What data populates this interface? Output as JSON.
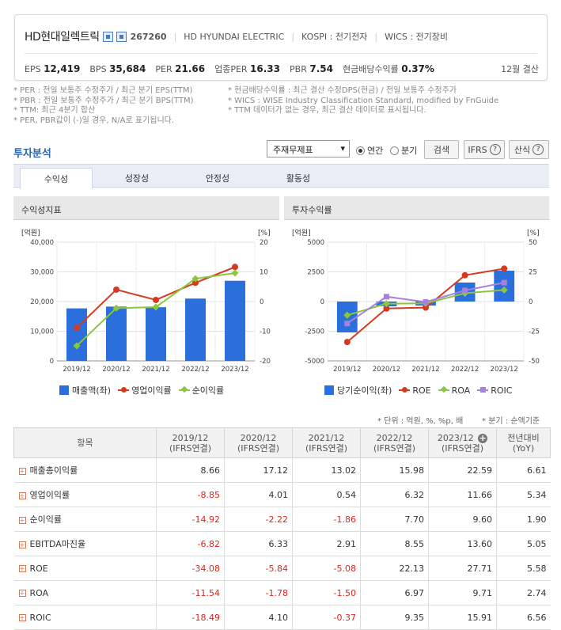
{
  "company": {
    "name": "HD현대일렉트릭",
    "code": "267260",
    "english_name": "HD HYUNDAI ELECTRIC",
    "market": "KOSPI : 전기전자",
    "wics": "WICS : 전기장비"
  },
  "metrics": [
    {
      "label": "EPS",
      "value": "12,419"
    },
    {
      "label": "BPS",
      "value": "35,684"
    },
    {
      "label": "PER",
      "value": "21.66"
    },
    {
      "label": "업종PER",
      "value": "16.33"
    },
    {
      "label": "PBR",
      "value": "7.54"
    },
    {
      "label": "현금배당수익률",
      "value": "0.37%"
    }
  ],
  "settlement": "12월 결산",
  "notes": {
    "left": [
      "* PER : 전일 보통주 수정주가 / 최근 분기 EPS(TTM)",
      "* PBR : 전일 보통주 수정주가 / 최근 분기 BPS(TTM)",
      "* TTM: 최근 4분기 합산",
      "* PER, PBR값이 (-)일 경우, N/A로 표기됩니다."
    ],
    "right": [
      "* 현금배당수익률 : 최근 결산 수정DPS(현금) / 전일 보통주 수정주가",
      "* WICS : WISE Industry Classification Standard, modified by FnGuide",
      "* TTM 데이터가 없는 경우, 최근 결산 데이터로 표시됩니다."
    ]
  },
  "section_title": "투자분석",
  "controls": {
    "select_value": "주재무제표",
    "radio_annual": "연간",
    "radio_quarter": "분기",
    "search_button": "검색",
    "ifrs_button": "IFRS",
    "formula_button": "산식"
  },
  "tabs": [
    "수익성",
    "성장성",
    "안정성",
    "활동성"
  ],
  "panels": {
    "left_title": "수익성지표",
    "right_title": "투자수익률"
  },
  "unit_notes": {
    "unit": "* 단위 : 억원, %, %p, 배",
    "quarter": "* 분기 : 순액기준"
  },
  "colors": {
    "bar_blue": "#2a6fdb",
    "line_red": "#d63a1e",
    "line_green": "#8cc63e",
    "line_purple": "#a97fe0"
  },
  "chart_data": [
    {
      "type": "bar",
      "title": "수익성지표",
      "ylabel": "[억원]",
      "y2label": "[%]",
      "categories": [
        "2019/12",
        "2020/12",
        "2021/12",
        "2022/12",
        "2023/12"
      ],
      "ylim": [
        0,
        40000
      ],
      "y2lim": [
        -20,
        20
      ],
      "yticks": [
        "40,000",
        "30,000",
        "20,000",
        "10,000",
        "0"
      ],
      "y2ticks": [
        "20",
        "10",
        "0",
        "-10",
        "-20"
      ],
      "series": [
        {
          "name": "매출액(좌)",
          "kind": "bar",
          "axis": "left",
          "values": [
            17700,
            18300,
            18100,
            21000,
            27000
          ]
        },
        {
          "name": "영업이익률",
          "kind": "line",
          "axis": "right",
          "values": [
            -8.85,
            4.01,
            0.54,
            6.32,
            11.66
          ]
        },
        {
          "name": "순이익률",
          "kind": "line",
          "axis": "right",
          "values": [
            -14.92,
            -2.22,
            -1.86,
            7.7,
            9.6
          ]
        }
      ]
    },
    {
      "type": "bar",
      "title": "투자수익률",
      "ylabel": "[억원]",
      "y2label": "[%]",
      "categories": [
        "2019/12",
        "2020/12",
        "2021/12",
        "2022/12",
        "2023/12"
      ],
      "ylim": [
        -5000,
        5000
      ],
      "y2lim": [
        -50,
        50
      ],
      "yticks": [
        "5000",
        "2500",
        "0",
        "-2500",
        "-5000"
      ],
      "y2ticks": [
        "50",
        "25",
        "0",
        "-25",
        "-50"
      ],
      "series": [
        {
          "name": "당기순이익(좌)",
          "kind": "bar",
          "axis": "left",
          "values": [
            -2600,
            -400,
            -340,
            1600,
            2600
          ]
        },
        {
          "name": "ROE",
          "kind": "line",
          "axis": "right",
          "values": [
            -34.08,
            -5.84,
            -5.08,
            22.13,
            27.71
          ]
        },
        {
          "name": "ROA",
          "kind": "line",
          "axis": "right",
          "values": [
            -11.54,
            -1.78,
            -1.5,
            6.97,
            9.71
          ]
        },
        {
          "name": "ROIC",
          "kind": "line",
          "axis": "right",
          "values": [
            -18.49,
            4.1,
            -0.37,
            9.35,
            15.91
          ]
        }
      ]
    }
  ],
  "table": {
    "header_item": "항목",
    "columns": [
      {
        "period": "2019/12",
        "basis": "(IFRS연결)"
      },
      {
        "period": "2020/12",
        "basis": "(IFRS연결)"
      },
      {
        "period": "2021/12",
        "basis": "(IFRS연결)"
      },
      {
        "period": "2022/12",
        "basis": "(IFRS연결)"
      },
      {
        "period": "2023/12",
        "basis": "(IFRS연결)"
      },
      {
        "period": "전년대비",
        "basis": "(YoY)"
      }
    ],
    "rows": [
      {
        "label": "매출총이익률",
        "values": [
          "8.66",
          "17.12",
          "13.02",
          "15.98",
          "22.59",
          "6.61"
        ]
      },
      {
        "label": "영업이익률",
        "values": [
          "-8.85",
          "4.01",
          "0.54",
          "6.32",
          "11.66",
          "5.34"
        ]
      },
      {
        "label": "순이익률",
        "values": [
          "-14.92",
          "-2.22",
          "-1.86",
          "7.70",
          "9.60",
          "1.90"
        ]
      },
      {
        "label": "EBITDA마진율",
        "values": [
          "-6.82",
          "6.33",
          "2.91",
          "8.55",
          "13.60",
          "5.05"
        ]
      },
      {
        "label": "ROE",
        "values": [
          "-34.08",
          "-5.84",
          "-5.08",
          "22.13",
          "27.71",
          "5.58"
        ]
      },
      {
        "label": "ROA",
        "values": [
          "-11.54",
          "-1.78",
          "-1.50",
          "6.97",
          "9.71",
          "2.74"
        ]
      },
      {
        "label": "ROIC",
        "values": [
          "-18.49",
          "4.10",
          "-0.37",
          "9.35",
          "15.91",
          "6.56"
        ]
      }
    ]
  }
}
